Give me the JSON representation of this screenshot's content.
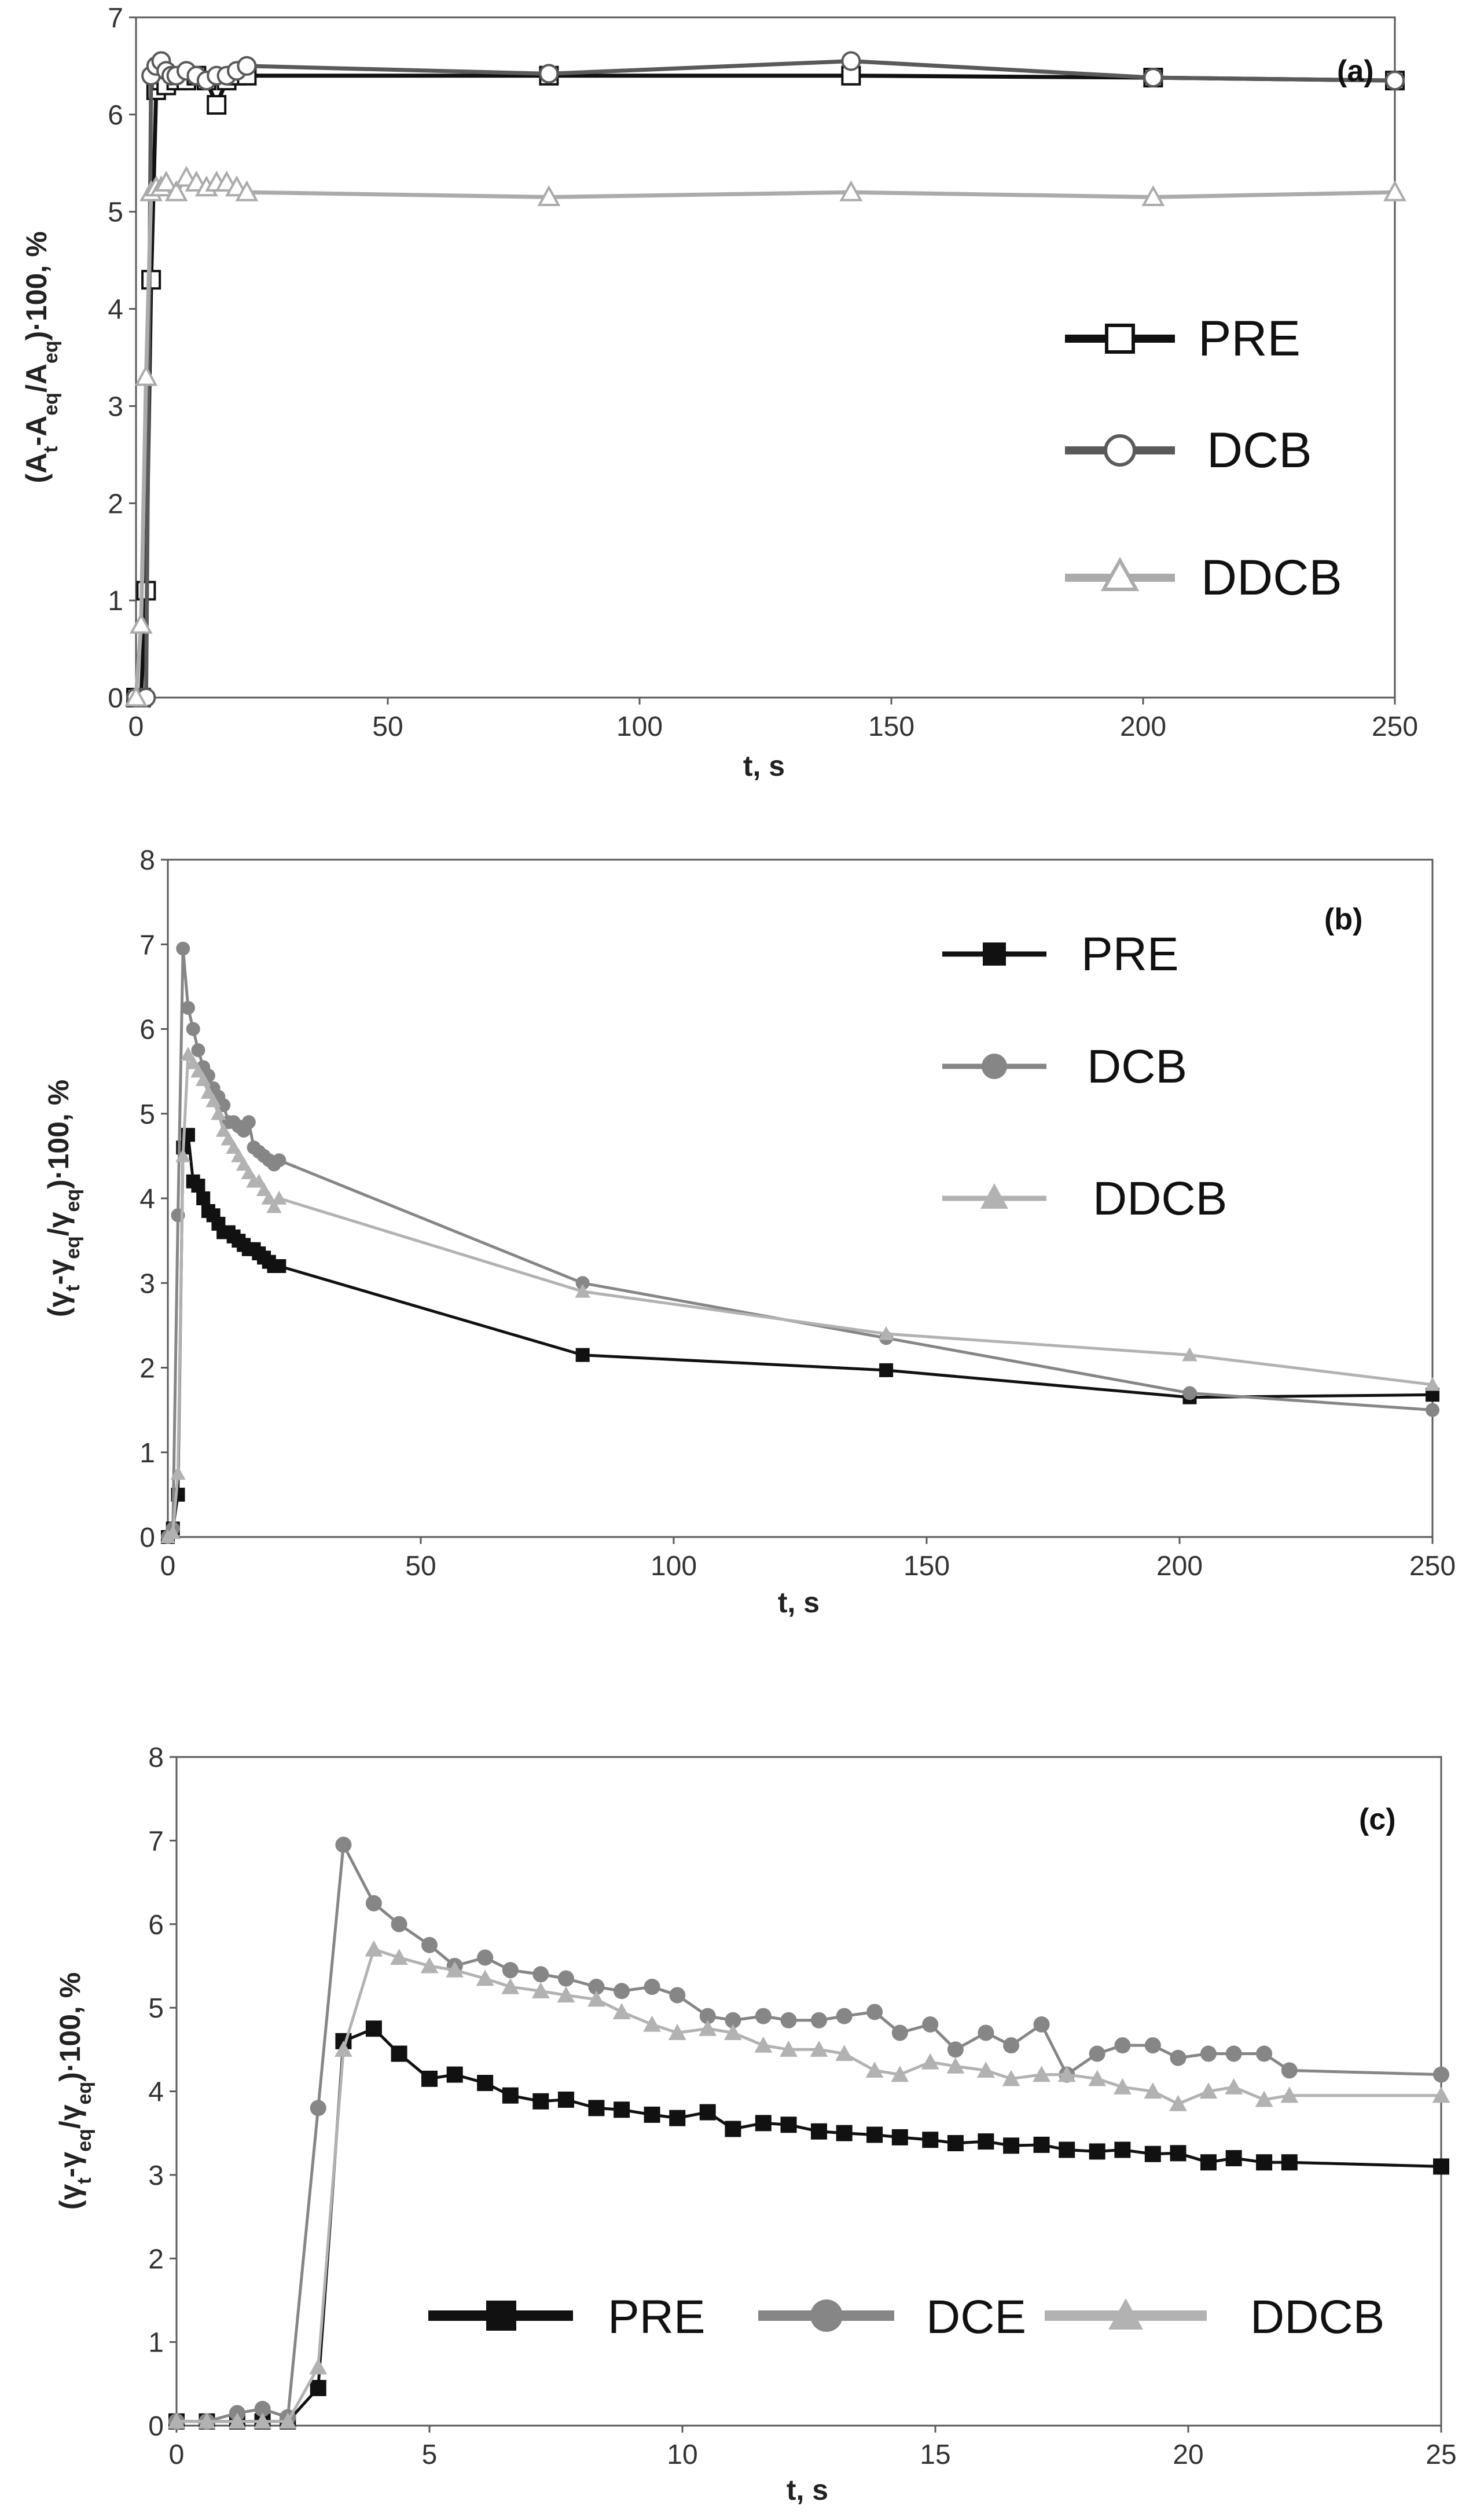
{
  "chart_data": [
    {
      "type": "line",
      "panel_label": "(a)",
      "xlabel": "t, s",
      "ylabel": "(A_t-A_eq/A_eq)·100, %",
      "ylabel_parts": {
        "p1": "(A",
        "s1": "t",
        "p2": "-A",
        "s2": "eq",
        "p3": "/A",
        "s3": "eq",
        "p4": ")·100,  %"
      },
      "xlim": [
        0,
        250
      ],
      "ylim": [
        0,
        7
      ],
      "xticks": [
        "0",
        "50",
        "100",
        "150",
        "200",
        "250"
      ],
      "yticks": [
        "0",
        "1",
        "2",
        "3",
        "4",
        "5",
        "6",
        "7"
      ],
      "legend_position": "right",
      "grid": false,
      "series": [
        {
          "name": "PRE",
          "color": "#111111",
          "marker": "square-open",
          "x": [
            0,
            1,
            2,
            3,
            4,
            5,
            6,
            8,
            10,
            12,
            14,
            16,
            18,
            20,
            22,
            82,
            142,
            202,
            250
          ],
          "y": [
            0,
            0,
            1.1,
            4.3,
            6.25,
            6.35,
            6.3,
            6.35,
            6.35,
            6.4,
            6.35,
            6.1,
            6.35,
            6.4,
            6.4,
            6.4,
            6.4,
            6.38,
            6.35
          ]
        },
        {
          "name": "DCB",
          "color": "#5a5a5a",
          "marker": "circle-open",
          "x": [
            0,
            1,
            2,
            3,
            4,
            5,
            6,
            7,
            8,
            10,
            12,
            14,
            16,
            18,
            20,
            22,
            82,
            142,
            202,
            250
          ],
          "y": [
            0,
            0,
            0,
            6.4,
            6.5,
            6.55,
            6.45,
            6.4,
            6.4,
            6.45,
            6.4,
            6.35,
            6.4,
            6.4,
            6.45,
            6.5,
            6.42,
            6.55,
            6.38,
            6.35
          ]
        },
        {
          "name": "DDCB",
          "color": "#ababab",
          "marker": "triangle-open",
          "x": [
            0,
            1,
            2,
            3,
            4,
            5,
            6,
            8,
            10,
            12,
            14,
            16,
            18,
            20,
            22,
            82,
            142,
            202,
            250
          ],
          "y": [
            0,
            0.75,
            3.3,
            5.2,
            5.25,
            5.25,
            5.3,
            5.2,
            5.35,
            5.3,
            5.25,
            5.3,
            5.3,
            5.25,
            5.2,
            5.15,
            5.2,
            5.15,
            5.2
          ]
        }
      ]
    },
    {
      "type": "line",
      "panel_label": "(b)",
      "xlabel": "t, s",
      "ylabel": "(γ_t-γ_eq/γ_eq)·100, %",
      "ylabel_parts": {
        "p1": "(γ",
        "s1": "t",
        "p2": "-γ",
        "s2": "eq",
        "p3": "/γ",
        "s3": "eq",
        "p4": ")·100, %"
      },
      "xlim": [
        0,
        250
      ],
      "ylim": [
        0,
        8
      ],
      "xticks": [
        "0",
        "50",
        "100",
        "150",
        "200",
        "250"
      ],
      "yticks": [
        "0",
        "1",
        "2",
        "3",
        "4",
        "5",
        "6",
        "7",
        "8"
      ],
      "legend_position": "top-right",
      "grid": false,
      "series": [
        {
          "name": "PRE",
          "color": "#111111",
          "marker": "square",
          "x": [
            0,
            1,
            2,
            3,
            4,
            5,
            6,
            7,
            8,
            9,
            10,
            11,
            12,
            13,
            14,
            15,
            16,
            17,
            18,
            19,
            20,
            21,
            22,
            82,
            142,
            202,
            250
          ],
          "y": [
            0,
            0.1,
            0.5,
            4.6,
            4.75,
            4.2,
            4.15,
            4.0,
            3.85,
            3.8,
            3.7,
            3.6,
            3.6,
            3.55,
            3.5,
            3.45,
            3.4,
            3.4,
            3.35,
            3.3,
            3.25,
            3.2,
            3.2,
            2.15,
            1.97,
            1.65,
            1.68
          ]
        },
        {
          "name": "DCB",
          "color": "#868686",
          "marker": "circle",
          "x": [
            0,
            1,
            2,
            3,
            4,
            5,
            6,
            7,
            8,
            9,
            10,
            11,
            12,
            13,
            14,
            15,
            16,
            17,
            18,
            19,
            20,
            21,
            22,
            82,
            142,
            202,
            250
          ],
          "y": [
            0,
            0.1,
            3.8,
            6.95,
            6.25,
            6.0,
            5.75,
            5.55,
            5.45,
            5.3,
            5.2,
            5.1,
            4.9,
            4.9,
            4.85,
            4.8,
            4.9,
            4.6,
            4.55,
            4.5,
            4.45,
            4.4,
            4.45,
            3.0,
            2.35,
            1.7,
            1.5
          ]
        },
        {
          "name": "DDCB",
          "color": "#b2b2b2",
          "marker": "triangle",
          "x": [
            0,
            1,
            2,
            3,
            4,
            5,
            6,
            7,
            8,
            9,
            10,
            11,
            12,
            13,
            14,
            15,
            16,
            17,
            18,
            19,
            20,
            21,
            22,
            82,
            142,
            202,
            250
          ],
          "y": [
            0,
            0.05,
            0.75,
            4.5,
            5.7,
            5.6,
            5.5,
            5.4,
            5.25,
            5.15,
            5.0,
            4.8,
            4.7,
            4.6,
            4.5,
            4.4,
            4.3,
            4.2,
            4.2,
            4.1,
            4.0,
            3.9,
            4.0,
            2.9,
            2.4,
            2.15,
            1.8
          ]
        }
      ]
    },
    {
      "type": "line",
      "panel_label": "(c)",
      "xlabel": "t, s",
      "ylabel": "(γ_t-γ_eq/γ_eq)·100, %",
      "ylabel_parts": {
        "p1": "(γ",
        "s1": "t",
        "p2": "-γ",
        "s2": "eq",
        "p3": "/γ",
        "s3": "eq",
        "p4": ")·100, %"
      },
      "xlim": [
        0,
        25
      ],
      "ylim": [
        0,
        8
      ],
      "xticks": [
        "0",
        "5",
        "10",
        "15",
        "20",
        "25"
      ],
      "yticks": [
        "0",
        "1",
        "2",
        "3",
        "4",
        "5",
        "6",
        "7",
        "8"
      ],
      "legend_position": "bottom",
      "grid": false,
      "series": [
        {
          "name": "PRE",
          "color": "#111111",
          "marker": "square",
          "x": [
            0,
            0.6,
            1.2,
            1.7,
            2.2,
            2.8,
            3.3,
            3.9,
            4.4,
            5.0,
            5.5,
            6.1,
            6.6,
            7.2,
            7.7,
            8.3,
            8.8,
            9.4,
            9.9,
            10.5,
            11.0,
            11.6,
            12.1,
            12.7,
            13.2,
            13.8,
            14.3,
            14.9,
            15.4,
            16.0,
            16.5,
            17.1,
            17.6,
            18.2,
            18.7,
            19.3,
            19.8,
            20.4,
            20.9,
            21.5,
            22.0,
            25.0
          ],
          "y": [
            0.05,
            0.05,
            0.05,
            0.05,
            0.05,
            0.45,
            4.6,
            4.75,
            4.45,
            4.15,
            4.2,
            4.1,
            3.95,
            3.88,
            3.9,
            3.8,
            3.78,
            3.72,
            3.68,
            3.75,
            3.55,
            3.62,
            3.6,
            3.52,
            3.5,
            3.48,
            3.45,
            3.42,
            3.38,
            3.4,
            3.35,
            3.36,
            3.3,
            3.28,
            3.3,
            3.25,
            3.26,
            3.15,
            3.2,
            3.15,
            3.15,
            3.1
          ]
        },
        {
          "name": "DCE",
          "color": "#868686",
          "marker": "circle",
          "x": [
            0,
            0.6,
            1.2,
            1.7,
            2.2,
            2.8,
            3.3,
            3.9,
            4.4,
            5.0,
            5.5,
            6.1,
            6.6,
            7.2,
            7.7,
            8.3,
            8.8,
            9.4,
            9.9,
            10.5,
            11.0,
            11.6,
            12.1,
            12.7,
            13.2,
            13.8,
            14.3,
            14.9,
            15.4,
            16.0,
            16.5,
            17.1,
            17.6,
            18.2,
            18.7,
            19.3,
            19.8,
            20.4,
            20.9,
            21.5,
            22.0,
            25.0
          ],
          "y": [
            0.05,
            0.05,
            0.15,
            0.2,
            0.1,
            3.8,
            6.95,
            6.25,
            6.0,
            5.75,
            5.5,
            5.6,
            5.45,
            5.4,
            5.35,
            5.25,
            5.2,
            5.25,
            5.15,
            4.9,
            4.85,
            4.9,
            4.85,
            4.85,
            4.9,
            4.95,
            4.7,
            4.8,
            4.5,
            4.7,
            4.55,
            4.8,
            4.2,
            4.45,
            4.55,
            4.55,
            4.4,
            4.45,
            4.45,
            4.45,
            4.25,
            4.2
          ]
        },
        {
          "name": "DDCB",
          "color": "#b2b2b2",
          "marker": "triangle",
          "x": [
            0,
            0.6,
            1.2,
            1.7,
            2.2,
            2.8,
            3.3,
            3.9,
            4.4,
            5.0,
            5.5,
            6.1,
            6.6,
            7.2,
            7.7,
            8.3,
            8.8,
            9.4,
            9.9,
            10.5,
            11.0,
            11.6,
            12.1,
            12.7,
            13.2,
            13.8,
            14.3,
            14.9,
            15.4,
            16.0,
            16.5,
            17.1,
            17.6,
            18.2,
            18.7,
            19.3,
            19.8,
            20.4,
            20.9,
            21.5,
            22.0,
            25.0
          ],
          "y": [
            0.05,
            0.05,
            0.05,
            0.05,
            0.05,
            0.7,
            4.5,
            5.7,
            5.6,
            5.5,
            5.45,
            5.35,
            5.25,
            5.2,
            5.15,
            5.1,
            4.95,
            4.8,
            4.7,
            4.75,
            4.7,
            4.55,
            4.5,
            4.5,
            4.45,
            4.25,
            4.2,
            4.35,
            4.3,
            4.25,
            4.15,
            4.2,
            4.2,
            4.15,
            4.05,
            4.0,
            3.85,
            4.0,
            4.05,
            3.9,
            3.95,
            3.95
          ]
        }
      ]
    }
  ]
}
